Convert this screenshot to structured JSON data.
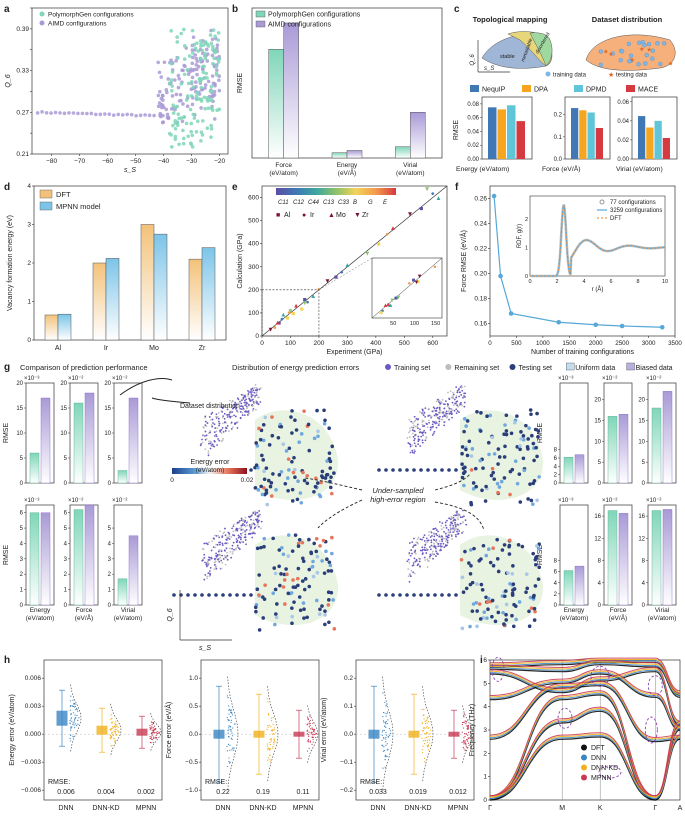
{
  "colors": {
    "green": "#7fd6b8",
    "purple": "#a99ad6",
    "dft": "#f3c27a",
    "mpnn": "#7cc4e8",
    "nequip": "#3f78b5",
    "dpa": "#f5a51f",
    "dpmd": "#5fc6d9",
    "mace": "#d6393f",
    "dnn": "#3a85c3",
    "dnnkd": "#f1b11c",
    "mpnn_h": "#c93a55",
    "training": "#6a5bc2",
    "remaining": "#bdbdbd",
    "testing": "#2a3e7a",
    "field": "#e7f2df"
  },
  "panels": {
    "a": {
      "label": "a",
      "xlabel": "s_S",
      "ylabel": "Q_6",
      "legend": [
        "PolymorphGen configurations",
        "AIMD configurations"
      ],
      "xticks": [
        "−80",
        "−70",
        "−60",
        "−50",
        "−40",
        "−30",
        "−20"
      ],
      "yticks": [
        "0.21",
        "0.24",
        "0.27",
        "0.30",
        "0.33",
        "0.36",
        "0.39",
        "0.42"
      ]
    },
    "b": {
      "label": "b",
      "ylabel": "RMSE",
      "legend": [
        "PolymorphGen configurations",
        "AIMD configurations"
      ],
      "categories": [
        "Force\n(eV/atom)",
        "Energy\n(eV/Å)",
        "Virial\n(eV/atom)"
      ]
    },
    "c": {
      "label": "c",
      "title1": "Topological mapping",
      "title2": "Dataset distribution",
      "regions": [
        "stable",
        "metastable",
        "disordered"
      ],
      "axis_q6": "Q_6",
      "axis_ss": "s_S",
      "dots": [
        "training data",
        "testing data"
      ],
      "legend": [
        "NequIP",
        "DPA",
        "DPMD",
        "MACE"
      ],
      "ylabel": "RMSE",
      "groups": [
        "Energy (eV/atom)",
        "Force (eV/Å)",
        "Virial (eV/atom)"
      ],
      "yticks": [
        [
          "0.00",
          "0.02",
          "0.04",
          "0.06",
          "0.08"
        ],
        [
          "0.0",
          "0.1",
          "0.2"
        ],
        [
          "0.00",
          "0.02",
          "0.04",
          "0.06"
        ]
      ]
    },
    "d": {
      "label": "d",
      "ylabel": "Vacancy formation energy (eV)",
      "legend": [
        "DFT",
        "MPNN model"
      ],
      "categories": [
        "Al",
        "Ir",
        "Mo",
        "Zr"
      ],
      "yticks": [
        "0",
        "1",
        "2",
        "3",
        "4"
      ]
    },
    "e": {
      "label": "e",
      "xlabel": "Experiment (GPa)",
      "ylabel": "Calculation (GPa)",
      "cbar": [
        "C11",
        "C12",
        "C44",
        "C13",
        "C33",
        "B",
        "G",
        "E"
      ],
      "elements": [
        "Al",
        "Ir",
        "Mo",
        "Zr"
      ],
      "xticks": [
        "0",
        "100",
        "200",
        "300",
        "400",
        "500",
        "600"
      ],
      "yticks": [
        "0",
        "100",
        "200",
        "300",
        "400",
        "500",
        "600"
      ],
      "inset_ticks": [
        "50",
        "100",
        "150"
      ]
    },
    "f": {
      "label": "f",
      "xlabel": "Number of training configurations",
      "ylabel": "Force RMSE (eV/Å)",
      "inset_legend": [
        "77 configurations",
        "3259 configurations",
        "DFT"
      ],
      "inset_xlabel": "r (Å)",
      "inset_ylabel": "RDF, g(r)",
      "xticks": [
        "0",
        "500",
        "1000",
        "1500",
        "2000",
        "2500",
        "3000",
        "3500"
      ],
      "yticks": [
        "0.16",
        "0.18",
        "0.20",
        "0.22",
        "0.24",
        "0.26"
      ],
      "inset_xticks": [
        "0",
        "2",
        "4",
        "6",
        "8",
        "10"
      ],
      "inset_yticks": [
        "0",
        "1",
        "2"
      ]
    },
    "g": {
      "label": "g",
      "title_left": "Comparison of prediction performance",
      "title_mid": "Distribution of energy prediction errors",
      "legend": [
        "Training set",
        "Remaining set",
        "Testing set",
        "Uniform data",
        "Biased data"
      ],
      "dataset_distribution": "Dataset distribution",
      "under_sampled": "Under-sampled",
      "high_error": "high-error region",
      "cbar_title": "Energy error",
      "cbar_unit": "(eV/atom)",
      "cbar_min": "0",
      "cbar_max": "0.02",
      "axis_q6": "Q_6",
      "axis_ss": "s_S",
      "ylabel": "RMSE",
      "xcats": [
        "Energy\n(eV/atom)",
        "Force\n(eV/Å)",
        "Virial\n(eV/atom)"
      ],
      "scales": [
        "×10⁻³",
        "×10⁻²",
        "×10⁻²"
      ]
    },
    "h": {
      "label": "h",
      "categories": [
        "DNN",
        "DNN-KD",
        "MPNN"
      ],
      "rmse_label": "RMSE:",
      "plots": [
        {
          "ylabel": "Energy error (eV/atom)",
          "rmse": [
            "0.006",
            "0.004",
            "0.002"
          ],
          "yticks": [
            "−0.006",
            "−0.003",
            "0.000",
            "0.003",
            "0.006"
          ]
        },
        {
          "ylabel": "Force error (eV/Å)",
          "rmse": [
            "0.22",
            "0.19",
            "0.11"
          ],
          "yticks": [
            "−1.0",
            "−0.5",
            "0.0",
            "0.5",
            "1.0"
          ]
        },
        {
          "ylabel": "Virial error (eV/atom)",
          "rmse": [
            "0.033",
            "0.019",
            "0.012"
          ],
          "yticks": [
            "−0.2",
            "−0.1",
            "0.0",
            "0.1",
            "0.2"
          ]
        }
      ]
    },
    "i": {
      "label": "i",
      "ylabel": "Frequency (THz)",
      "kpoints": [
        "Γ",
        "M",
        "K",
        "Γ",
        "A"
      ],
      "legend": [
        "DFT",
        "DNN",
        "DNN-KD",
        "MPNN"
      ],
      "yticks": [
        "0",
        "1",
        "2",
        "3",
        "4",
        "5",
        "6"
      ]
    }
  },
  "chart_data": [
    {
      "panel": "b",
      "type": "bar",
      "categories": [
        "Force",
        "Energy",
        "Virial"
      ],
      "series": [
        {
          "name": "PolymorphGen configurations",
          "values": [
            0.145,
            0.007,
            0.015
          ]
        },
        {
          "name": "AIMD configurations",
          "values": [
            0.18,
            0.01,
            0.061
          ]
        }
      ],
      "ylim": [
        0,
        0.2
      ]
    },
    {
      "panel": "c",
      "type": "bar",
      "groups": [
        "Energy",
        "Force",
        "Virial"
      ],
      "series": [
        {
          "name": "NequIP",
          "values": [
            0.075,
            0.23,
            0.045
          ]
        },
        {
          "name": "DPA",
          "values": [
            0.072,
            0.22,
            0.033
          ]
        },
        {
          "name": "DPMD",
          "values": [
            0.078,
            0.21,
            0.04
          ]
        },
        {
          "name": "MACE",
          "values": [
            0.055,
            0.14,
            0.022
          ]
        }
      ],
      "ylims": [
        [
          0,
          0.09
        ],
        [
          0,
          0.28
        ],
        [
          0,
          0.065
        ]
      ]
    },
    {
      "panel": "d",
      "type": "bar",
      "categories": [
        "Al",
        "Ir",
        "Mo",
        "Zr"
      ],
      "series": [
        {
          "name": "DFT",
          "values": [
            0.65,
            2.0,
            3.0,
            2.1
          ]
        },
        {
          "name": "MPNN model",
          "values": [
            0.67,
            2.12,
            2.75,
            2.4
          ]
        }
      ],
      "ylim": [
        0,
        4
      ]
    },
    {
      "panel": "e",
      "type": "scatter",
      "xlim": [
        0,
        650
      ],
      "ylim": [
        0,
        650
      ],
      "points": [
        [
          60,
          58
        ],
        [
          70,
          75
        ],
        [
          75,
          95
        ],
        [
          100,
          110
        ],
        [
          110,
          100
        ],
        [
          45,
          40
        ],
        [
          55,
          60
        ],
        [
          30,
          30
        ],
        [
          150,
          160
        ],
        [
          160,
          150
        ],
        [
          180,
          175
        ],
        [
          150,
          145
        ],
        [
          140,
          120
        ],
        [
          95,
          105
        ],
        [
          120,
          135
        ],
        [
          230,
          240
        ],
        [
          260,
          258
        ],
        [
          280,
          280
        ],
        [
          300,
          310
        ],
        [
          370,
          360
        ],
        [
          410,
          400
        ],
        [
          440,
          445
        ],
        [
          460,
          470
        ],
        [
          520,
          530
        ],
        [
          560,
          555
        ],
        [
          600,
          620
        ],
        [
          620,
          600
        ],
        [
          580,
          640
        ],
        [
          90,
          80
        ],
        [
          200,
          205
        ]
      ]
    },
    {
      "panel": "f",
      "type": "line",
      "x": [
        77,
        200,
        400,
        1300,
        2000,
        2500,
        3259
      ],
      "y": [
        0.262,
        0.198,
        0.168,
        0.161,
        0.159,
        0.158,
        0.157
      ],
      "xlim": [
        0,
        3500
      ],
      "ylim": [
        0.15,
        0.27
      ]
    },
    {
      "panel": "g",
      "type": "bar",
      "name": "g-left-top",
      "series": [
        {
          "values": [
            6.0,
            17.0
          ]
        },
        {
          "values": [
            16.0,
            18.0
          ]
        },
        {
          "values": [
            2.5,
            17.0
          ]
        }
      ]
    },
    {
      "panel": "g",
      "type": "bar",
      "name": "g-left-bottom",
      "series": [
        {
          "values": [
            6.0,
            6.0
          ]
        },
        {
          "values": [
            6.2,
            6.5
          ]
        },
        {
          "values": [
            1.7,
            4.5
          ]
        }
      ]
    },
    {
      "panel": "g",
      "type": "bar",
      "name": "g-right-top",
      "series": [
        {
          "values": [
            6.2,
            6.8
          ]
        },
        {
          "values": [
            16.0,
            16.5
          ]
        },
        {
          "values": [
            18.0,
            22.0
          ]
        }
      ]
    },
    {
      "panel": "g",
      "type": "bar",
      "name": "g-right-bottom",
      "series": [
        {
          "values": [
            6.2,
            7.0
          ]
        },
        {
          "values": [
            17.0,
            16.5
          ]
        },
        {
          "values": [
            17.0,
            17.2
          ]
        }
      ]
    },
    {
      "panel": "h",
      "type": "box",
      "series": [
        {
          "name": "Energy",
          "medians": [
            0.0025,
            0.0008,
            0.0006
          ]
        },
        {
          "name": "Force",
          "medians": [
            0.0,
            0.0,
            0.0
          ]
        },
        {
          "name": "Virial",
          "medians": [
            0.0,
            0.0,
            0.0
          ]
        }
      ]
    },
    {
      "panel": "i",
      "type": "line",
      "ylim": [
        0,
        6
      ],
      "kpoints": [
        "Γ",
        "M",
        "K",
        "Γ",
        "A"
      ]
    }
  ]
}
